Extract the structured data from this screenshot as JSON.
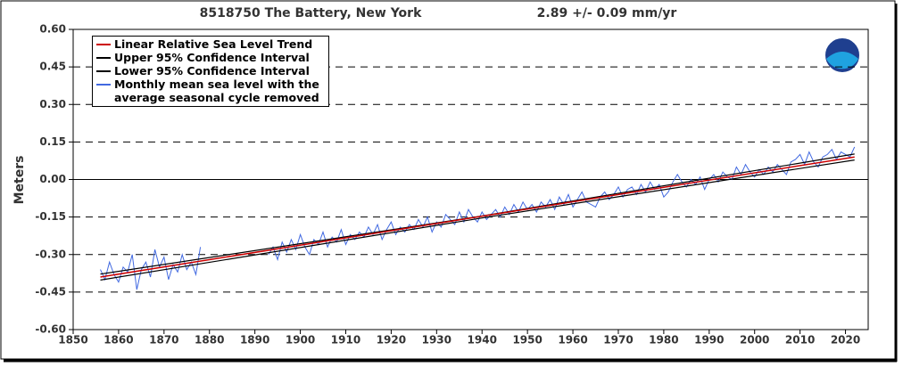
{
  "chart_data": {
    "type": "line",
    "title": "8518750 The Battery, New York",
    "subtitle": "2.89 +/-  0.09 mm/yr",
    "y_label": "Meters",
    "xlim": [
      1850,
      2025
    ],
    "ylim": [
      -0.6,
      0.6
    ],
    "xticks": [
      1850,
      1860,
      1870,
      1880,
      1890,
      1900,
      1910,
      1920,
      1930,
      1940,
      1950,
      1960,
      1970,
      1980,
      1990,
      2000,
      2010,
      2020
    ],
    "yticks": [
      {
        "value": 0.6,
        "label": "0.60"
      },
      {
        "value": 0.45,
        "label": "0.45"
      },
      {
        "value": 0.3,
        "label": "0.30"
      },
      {
        "value": 0.15,
        "label": "0.15"
      },
      {
        "value": 0,
        "label": "0.00"
      },
      {
        "value": -0.15,
        "label": "-0.15"
      },
      {
        "value": -0.3,
        "label": "-0.30"
      },
      {
        "value": -0.45,
        "label": "-0.45"
      },
      {
        "value": -0.6,
        "label": "-0.60"
      }
    ],
    "grid": true,
    "legend": "upper left",
    "series": [
      {
        "name": "Linear Relative Sea Level Trend",
        "color": "#cc0000",
        "x": [
          1856,
          2022
        ],
        "values": [
          -0.39,
          0.09
        ]
      },
      {
        "name": "Upper 95% Confidence Interval",
        "color": "#000000",
        "x": [
          1856,
          1940,
          2022
        ],
        "values": [
          -0.378,
          -0.146,
          0.102
        ]
      },
      {
        "name": "Lower 95% Confidence Interval",
        "color": "#000000",
        "x": [
          1856,
          1940,
          2022
        ],
        "values": [
          -0.402,
          -0.154,
          0.078
        ]
      },
      {
        "name": "Monthly mean sea level with the average seasonal cycle removed",
        "color": "#4169e1",
        "x": [
          1856,
          1857,
          1858,
          1859,
          1860,
          1861,
          1862,
          1863,
          1864,
          1865,
          1866,
          1867,
          1868,
          1869,
          1870,
          1871,
          1872,
          1873,
          1874,
          1875,
          1876,
          1877,
          1878,
          1885,
          1893,
          1894,
          1895,
          1896,
          1897,
          1898,
          1899,
          1900,
          1901,
          1902,
          1903,
          1904,
          1905,
          1906,
          1907,
          1908,
          1909,
          1910,
          1911,
          1912,
          1913,
          1914,
          1915,
          1916,
          1917,
          1918,
          1919,
          1920,
          1921,
          1922,
          1923,
          1924,
          1925,
          1926,
          1927,
          1928,
          1929,
          1930,
          1931,
          1932,
          1933,
          1934,
          1935,
          1936,
          1937,
          1938,
          1939,
          1940,
          1941,
          1942,
          1943,
          1944,
          1945,
          1946,
          1947,
          1948,
          1949,
          1950,
          1951,
          1952,
          1953,
          1954,
          1955,
          1956,
          1957,
          1958,
          1959,
          1960,
          1961,
          1962,
          1963,
          1964,
          1965,
          1966,
          1967,
          1968,
          1969,
          1970,
          1971,
          1972,
          1973,
          1974,
          1975,
          1976,
          1977,
          1978,
          1979,
          1980,
          1981,
          1982,
          1983,
          1984,
          1985,
          1986,
          1987,
          1988,
          1989,
          1990,
          1991,
          1992,
          1993,
          1994,
          1995,
          1996,
          1997,
          1998,
          1999,
          2000,
          2001,
          2002,
          2003,
          2004,
          2005,
          2006,
          2007,
          2008,
          2009,
          2010,
          2011,
          2012,
          2013,
          2014,
          2015,
          2016,
          2017,
          2018,
          2019,
          2020,
          2021,
          2022
        ],
        "values": [
          -0.36,
          -0.4,
          -0.33,
          -0.38,
          -0.41,
          -0.35,
          -0.37,
          -0.3,
          -0.44,
          -0.36,
          -0.33,
          -0.39,
          -0.28,
          -0.35,
          -0.31,
          -0.4,
          -0.34,
          -0.37,
          -0.3,
          -0.36,
          -0.33,
          -0.38,
          -0.27,
          null,
          -0.3,
          -0.27,
          -0.32,
          -0.25,
          -0.29,
          -0.24,
          -0.28,
          -0.22,
          -0.27,
          -0.3,
          -0.24,
          -0.26,
          -0.21,
          -0.27,
          -0.23,
          -0.25,
          -0.2,
          -0.26,
          -0.22,
          -0.24,
          -0.21,
          -0.23,
          -0.19,
          -0.22,
          -0.18,
          -0.24,
          -0.2,
          -0.17,
          -0.22,
          -0.19,
          -0.21,
          -0.18,
          -0.2,
          -0.16,
          -0.19,
          -0.15,
          -0.21,
          -0.17,
          -0.19,
          -0.14,
          -0.16,
          -0.18,
          -0.13,
          -0.17,
          -0.12,
          -0.15,
          -0.17,
          -0.13,
          -0.16,
          -0.14,
          -0.12,
          -0.15,
          -0.11,
          -0.14,
          -0.1,
          -0.13,
          -0.09,
          -0.12,
          -0.1,
          -0.13,
          -0.09,
          -0.11,
          -0.08,
          -0.12,
          -0.07,
          -0.1,
          -0.06,
          -0.11,
          -0.08,
          -0.05,
          -0.09,
          -0.1,
          -0.11,
          -0.07,
          -0.05,
          -0.08,
          -0.06,
          -0.03,
          -0.07,
          -0.04,
          -0.03,
          -0.06,
          -0.02,
          -0.05,
          -0.01,
          -0.04,
          -0.02,
          -0.07,
          -0.05,
          -0.01,
          0.02,
          -0.01,
          -0.03,
          0.0,
          -0.02,
          0.01,
          -0.04,
          0.0,
          0.02,
          -0.01,
          0.03,
          0.01,
          0.0,
          0.05,
          0.02,
          0.06,
          0.03,
          0.01,
          0.04,
          0.02,
          0.05,
          0.03,
          0.06,
          0.04,
          0.02,
          0.07,
          0.08,
          0.1,
          0.06,
          0.11,
          0.07,
          0.05,
          0.09,
          0.1,
          0.12,
          0.08,
          0.11,
          0.1,
          0.09,
          0.13
        ]
      }
    ]
  }
}
